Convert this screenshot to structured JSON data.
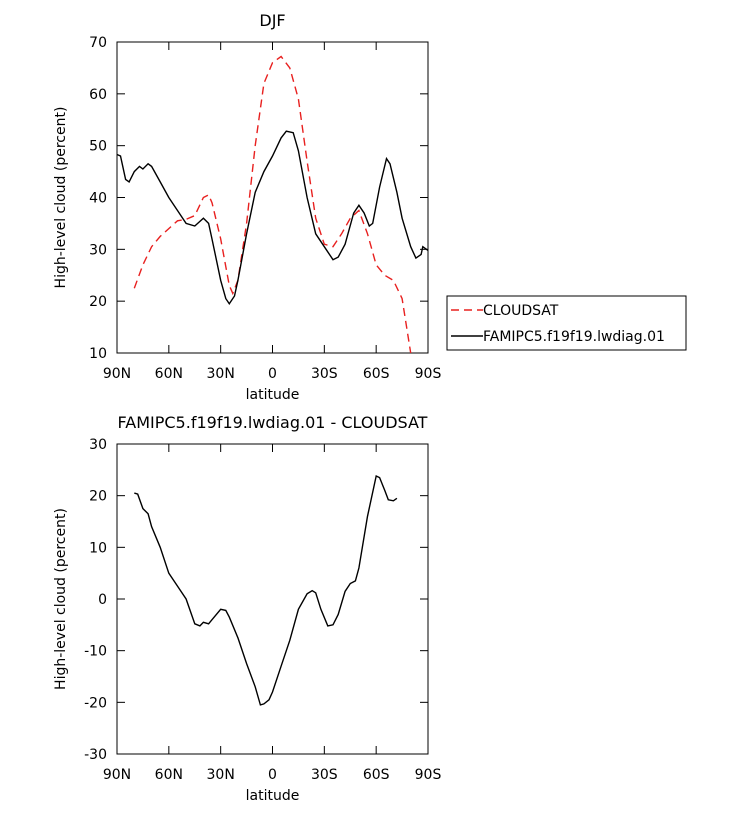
{
  "chart_data": [
    {
      "type": "line",
      "title": "DJF",
      "xlabel": "latitude",
      "ylabel": "High-level cloud (percent)",
      "xlim": [
        90,
        -90
      ],
      "xticks": [
        {
          "value": 90,
          "label": "90N"
        },
        {
          "value": 60,
          "label": "60N"
        },
        {
          "value": 30,
          "label": "30N"
        },
        0,
        {
          "value": -30,
          "label": "30S"
        },
        {
          "value": -60,
          "label": "60S"
        },
        {
          "value": -90,
          "label": "90S"
        }
      ],
      "ylim": [
        10,
        70
      ],
      "yticks": [
        10,
        20,
        30,
        40,
        50,
        60,
        70
      ],
      "legend": "right",
      "series": [
        {
          "name": "CLOUDSAT",
          "color": "#e8201f",
          "style": "dashed",
          "x": [
            80,
            75,
            70,
            65,
            60,
            55,
            50,
            45,
            40,
            37,
            35,
            30,
            25,
            23,
            20,
            15,
            10,
            5,
            0,
            -5,
            -10,
            -15,
            -20,
            -25,
            -30,
            -35,
            -40,
            -45,
            -50,
            -55,
            -60,
            -65,
            -70,
            -75,
            -80
          ],
          "values": [
            22.5,
            27,
            30.5,
            32.5,
            34,
            35.5,
            35.8,
            36.5,
            40,
            40.5,
            39,
            32,
            23,
            21.5,
            24,
            35,
            50,
            62,
            66,
            67.2,
            65,
            59,
            47,
            36,
            31,
            30.5,
            33,
            36,
            37.5,
            33,
            27,
            25,
            24,
            20.5,
            10
          ]
        },
        {
          "name": "FAMIPC5.f19f19.lwdiag.01",
          "color": "#000000",
          "style": "solid",
          "x": [
            90,
            88,
            85,
            83,
            80,
            77,
            75,
            72,
            70,
            65,
            60,
            55,
            50,
            45,
            40,
            37,
            35,
            30,
            27,
            25,
            22,
            20,
            15,
            10,
            5,
            0,
            -5,
            -8,
            -12,
            -15,
            -20,
            -25,
            -30,
            -35,
            -38,
            -42,
            -47,
            -50,
            -53,
            -56,
            -58,
            -62,
            -66,
            -68,
            -72,
            -75,
            -80,
            -83,
            -86,
            -87,
            -90
          ],
          "values": [
            48.3,
            48,
            43.5,
            43,
            45,
            46,
            45.5,
            46.5,
            46,
            43,
            40,
            37.5,
            35,
            34.5,
            36,
            35,
            32,
            24,
            20.5,
            19.5,
            21,
            24,
            33,
            41,
            45,
            48,
            51.5,
            52.8,
            52.5,
            49,
            40,
            33,
            30.5,
            28,
            28.5,
            31,
            37,
            38.5,
            37,
            34.5,
            35,
            42,
            47.5,
            46.5,
            41,
            36,
            30.5,
            28.3,
            29,
            30.5,
            29.8
          ]
        }
      ]
    },
    {
      "type": "line",
      "title": "FAMIPC5.f19f19.lwdiag.01 - CLOUDSAT",
      "xlabel": "latitude",
      "ylabel": "High-level cloud (percent)",
      "xlim": [
        90,
        -90
      ],
      "xticks": [
        {
          "value": 90,
          "label": "90N"
        },
        {
          "value": 60,
          "label": "60N"
        },
        {
          "value": 30,
          "label": "30N"
        },
        0,
        {
          "value": -30,
          "label": "30S"
        },
        {
          "value": -60,
          "label": "60S"
        },
        {
          "value": -90,
          "label": "90S"
        }
      ],
      "ylim": [
        -30,
        30
      ],
      "yticks": [
        -30,
        -20,
        -10,
        0,
        10,
        20,
        30
      ],
      "series": [
        {
          "color": "#000000",
          "style": "solid",
          "x": [
            80,
            78,
            75,
            72,
            70,
            65,
            60,
            55,
            50,
            45,
            42,
            40,
            37,
            35,
            30,
            27,
            25,
            20,
            15,
            10,
            7,
            5,
            2,
            0,
            -5,
            -10,
            -15,
            -20,
            -23,
            -25,
            -28,
            -32,
            -35,
            -38,
            -42,
            -45,
            -48,
            -50,
            -55,
            -60,
            -62,
            -65,
            -67,
            -70,
            -72
          ],
          "values": [
            20.5,
            20.3,
            17.5,
            16.5,
            14,
            10,
            5,
            2.5,
            0,
            -4.8,
            -5.2,
            -4.5,
            -4.8,
            -4,
            -2,
            -2.2,
            -3.5,
            -7.5,
            -12.5,
            -17,
            -20.5,
            -20.3,
            -19.5,
            -18,
            -13,
            -8,
            -2,
            1,
            1.6,
            1.2,
            -2,
            -5.2,
            -5,
            -3,
            1.5,
            3,
            3.5,
            6,
            16,
            23.8,
            23.5,
            21,
            19.2,
            19,
            19.5
          ]
        }
      ]
    }
  ]
}
